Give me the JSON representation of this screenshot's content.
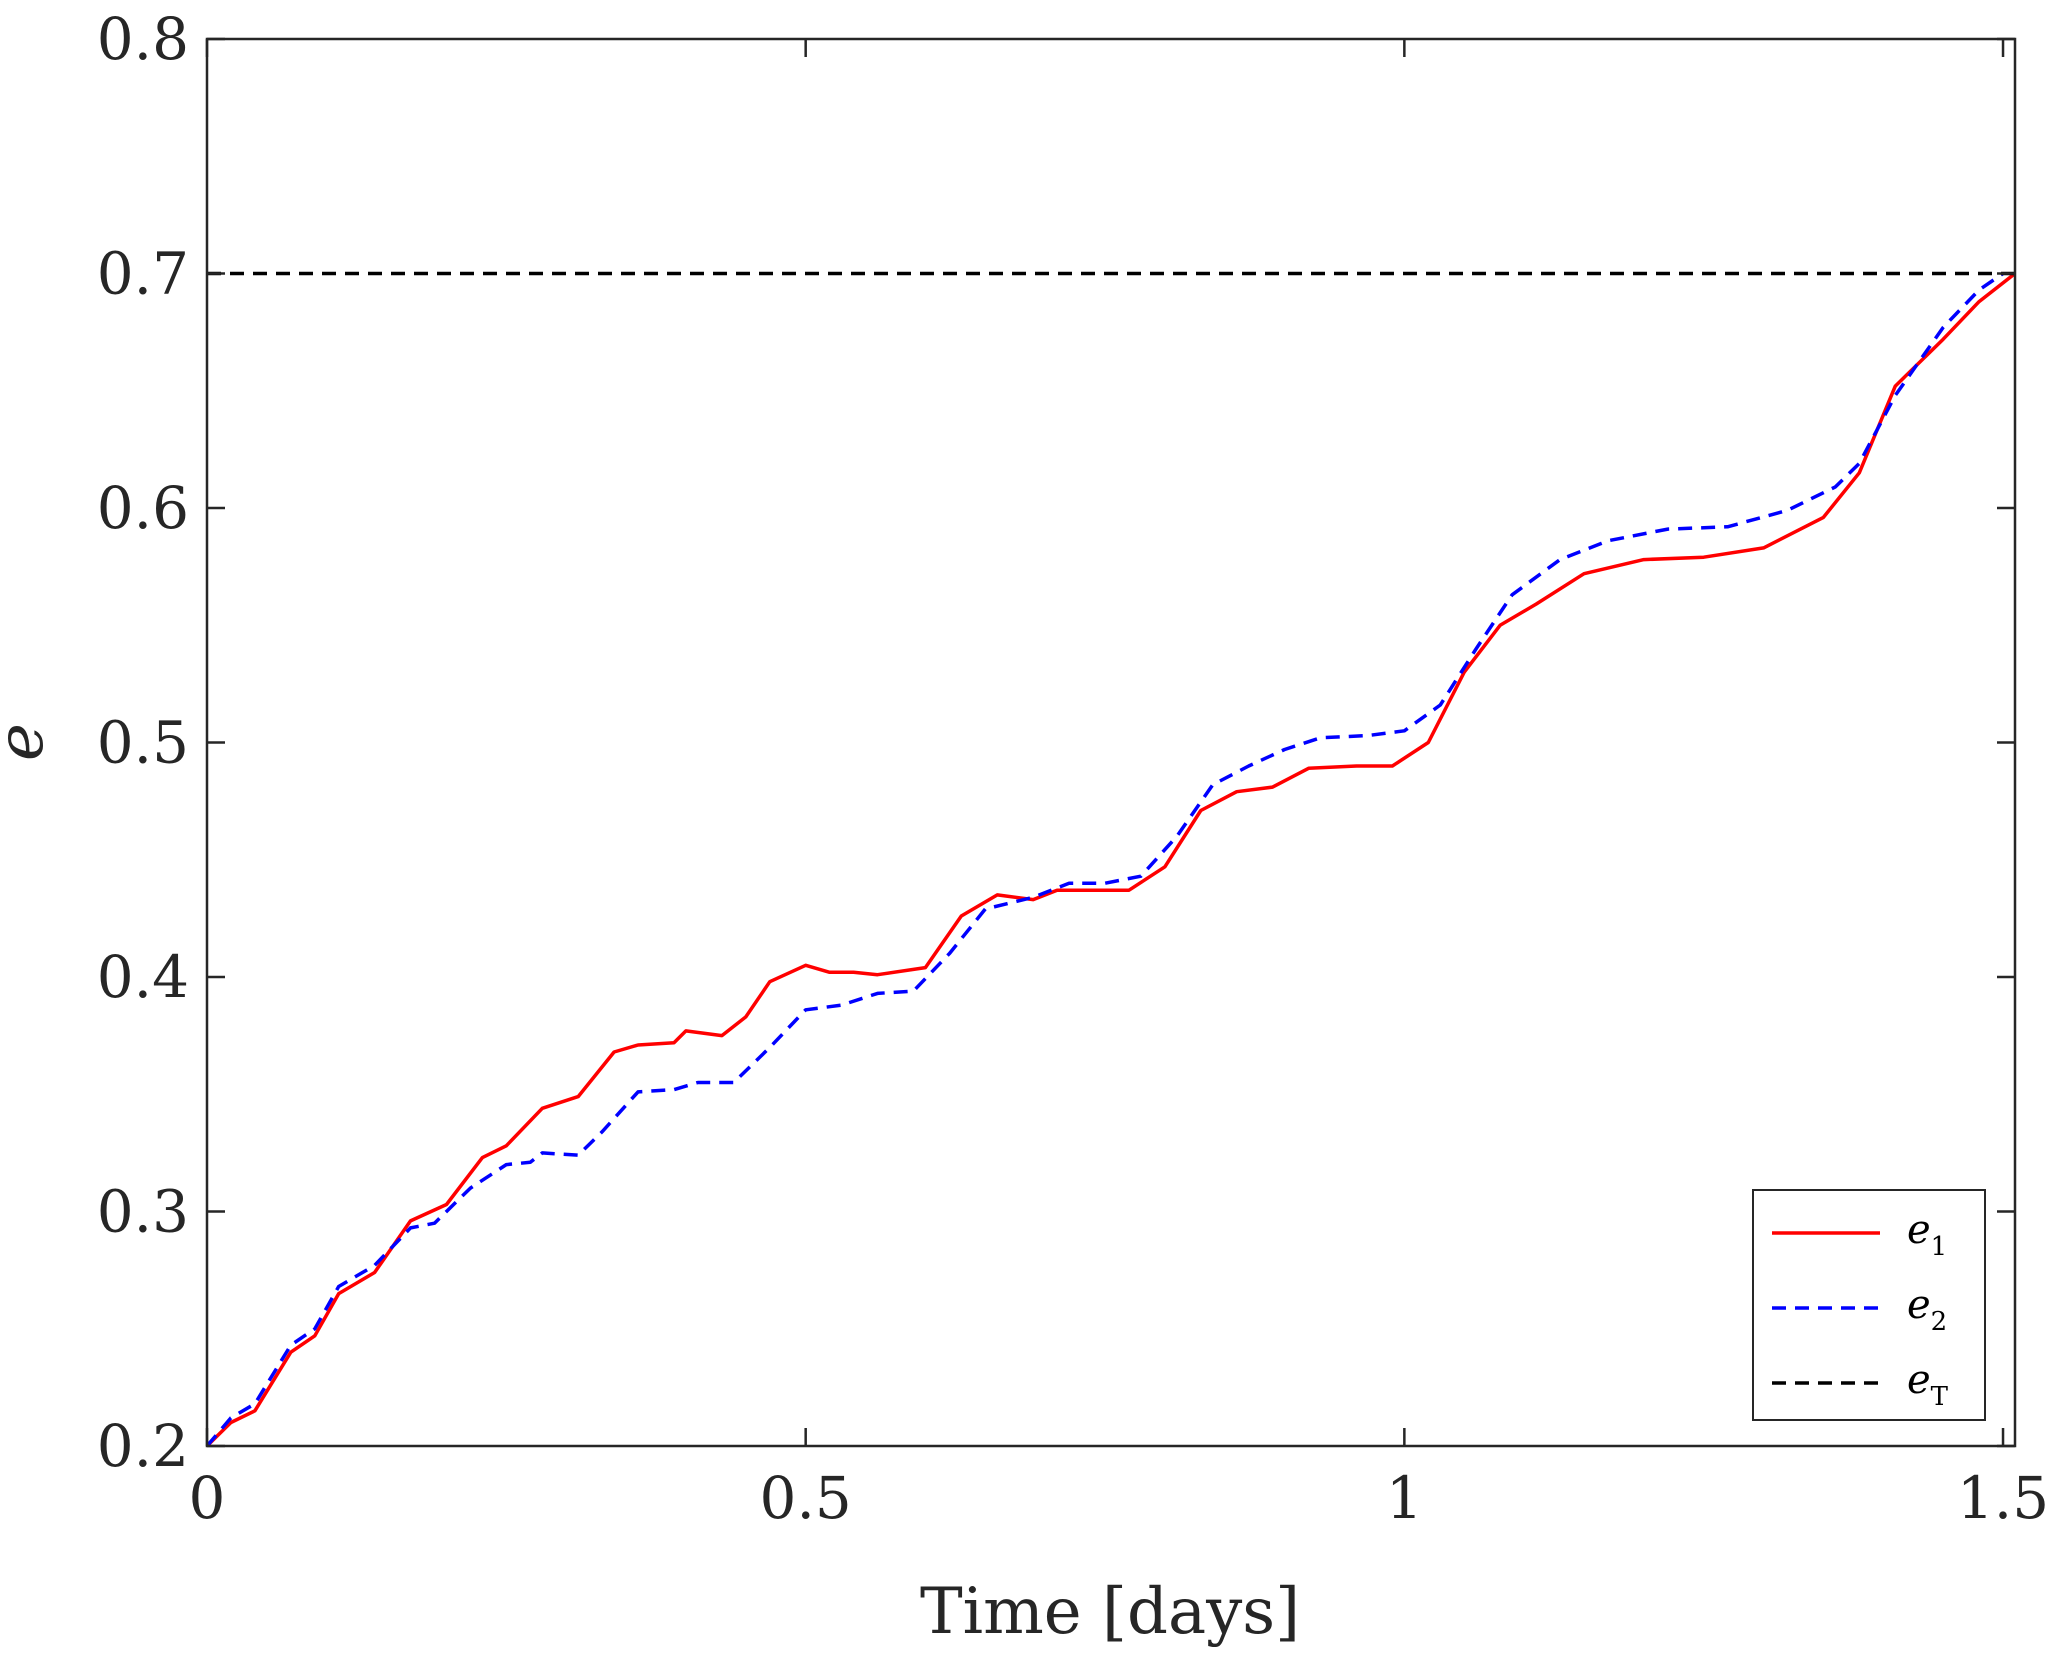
{
  "chart_data": {
    "type": "line",
    "xlabel": "Time [days]",
    "ylabel": "e",
    "xlim": [
      0,
      1.51
    ],
    "ylim": [
      0.2,
      0.8
    ],
    "xticks": [
      {
        "value": 0,
        "label": "0"
      },
      {
        "value": 0.5,
        "label": "0.5"
      },
      {
        "value": 1,
        "label": "1"
      },
      {
        "value": 1.5,
        "label": "1.5"
      }
    ],
    "yticks": [
      {
        "value": 0.2,
        "label": "0.2"
      },
      {
        "value": 0.3,
        "label": "0.3"
      },
      {
        "value": 0.4,
        "label": "0.4"
      },
      {
        "value": 0.5,
        "label": "0.5"
      },
      {
        "value": 0.6,
        "label": "0.6"
      },
      {
        "value": 0.7,
        "label": "0.7"
      },
      {
        "value": 0.8,
        "label": "0.8"
      }
    ],
    "grid": false,
    "legend_position": "bottom-right",
    "series": [
      {
        "name": "e",
        "name_sub": "1",
        "color": "#ff0000",
        "dash": "solid",
        "points": [
          [
            0,
            0.2
          ],
          [
            0.02,
            0.21
          ],
          [
            0.04,
            0.215
          ],
          [
            0.07,
            0.24
          ],
          [
            0.09,
            0.247
          ],
          [
            0.11,
            0.265
          ],
          [
            0.14,
            0.274
          ],
          [
            0.17,
            0.296
          ],
          [
            0.2,
            0.303
          ],
          [
            0.23,
            0.323
          ],
          [
            0.25,
            0.328
          ],
          [
            0.28,
            0.344
          ],
          [
            0.31,
            0.349
          ],
          [
            0.34,
            0.368
          ],
          [
            0.36,
            0.371
          ],
          [
            0.39,
            0.372
          ],
          [
            0.4,
            0.377
          ],
          [
            0.43,
            0.375
          ],
          [
            0.45,
            0.383
          ],
          [
            0.47,
            0.398
          ],
          [
            0.5,
            0.405
          ],
          [
            0.52,
            0.402
          ],
          [
            0.54,
            0.402
          ],
          [
            0.56,
            0.401
          ],
          [
            0.6,
            0.404
          ],
          [
            0.63,
            0.426
          ],
          [
            0.66,
            0.435
          ],
          [
            0.69,
            0.433
          ],
          [
            0.71,
            0.437
          ],
          [
            0.74,
            0.437
          ],
          [
            0.77,
            0.437
          ],
          [
            0.8,
            0.447
          ],
          [
            0.83,
            0.471
          ],
          [
            0.86,
            0.479
          ],
          [
            0.89,
            0.481
          ],
          [
            0.92,
            0.489
          ],
          [
            0.96,
            0.49
          ],
          [
            0.99,
            0.49
          ],
          [
            1.02,
            0.5
          ],
          [
            1.05,
            0.53
          ],
          [
            1.08,
            0.55
          ],
          [
            1.11,
            0.559
          ],
          [
            1.15,
            0.572
          ],
          [
            1.2,
            0.578
          ],
          [
            1.25,
            0.579
          ],
          [
            1.3,
            0.583
          ],
          [
            1.35,
            0.596
          ],
          [
            1.38,
            0.615
          ],
          [
            1.41,
            0.652
          ],
          [
            1.45,
            0.672
          ],
          [
            1.48,
            0.688
          ],
          [
            1.51,
            0.7
          ]
        ]
      },
      {
        "name": "e",
        "name_sub": "2",
        "color": "#0000ff",
        "dash": "dashed",
        "points": [
          [
            0,
            0.2
          ],
          [
            0.02,
            0.212
          ],
          [
            0.04,
            0.218
          ],
          [
            0.07,
            0.243
          ],
          [
            0.09,
            0.25
          ],
          [
            0.11,
            0.268
          ],
          [
            0.14,
            0.277
          ],
          [
            0.17,
            0.293
          ],
          [
            0.19,
            0.295
          ],
          [
            0.22,
            0.31
          ],
          [
            0.25,
            0.32
          ],
          [
            0.27,
            0.321
          ],
          [
            0.28,
            0.325
          ],
          [
            0.31,
            0.324
          ],
          [
            0.33,
            0.334
          ],
          [
            0.36,
            0.351
          ],
          [
            0.39,
            0.352
          ],
          [
            0.41,
            0.355
          ],
          [
            0.44,
            0.355
          ],
          [
            0.47,
            0.37
          ],
          [
            0.5,
            0.386
          ],
          [
            0.53,
            0.388
          ],
          [
            0.56,
            0.393
          ],
          [
            0.59,
            0.394
          ],
          [
            0.62,
            0.41
          ],
          [
            0.65,
            0.429
          ],
          [
            0.69,
            0.434
          ],
          [
            0.72,
            0.44
          ],
          [
            0.75,
            0.44
          ],
          [
            0.78,
            0.443
          ],
          [
            0.81,
            0.46
          ],
          [
            0.84,
            0.482
          ],
          [
            0.87,
            0.49
          ],
          [
            0.9,
            0.497
          ],
          [
            0.93,
            0.502
          ],
          [
            0.97,
            0.503
          ],
          [
            1.0,
            0.505
          ],
          [
            1.03,
            0.516
          ],
          [
            1.06,
            0.54
          ],
          [
            1.09,
            0.563
          ],
          [
            1.13,
            0.578
          ],
          [
            1.17,
            0.586
          ],
          [
            1.22,
            0.591
          ],
          [
            1.27,
            0.592
          ],
          [
            1.32,
            0.599
          ],
          [
            1.36,
            0.609
          ],
          [
            1.38,
            0.619
          ],
          [
            1.41,
            0.648
          ],
          [
            1.45,
            0.677
          ],
          [
            1.48,
            0.693
          ],
          [
            1.5,
            0.7
          ]
        ]
      },
      {
        "name": "e",
        "name_sub": "T",
        "color": "#000000",
        "dash": "dashed",
        "points": [
          [
            0,
            0.7
          ],
          [
            1.51,
            0.7
          ]
        ]
      }
    ]
  }
}
